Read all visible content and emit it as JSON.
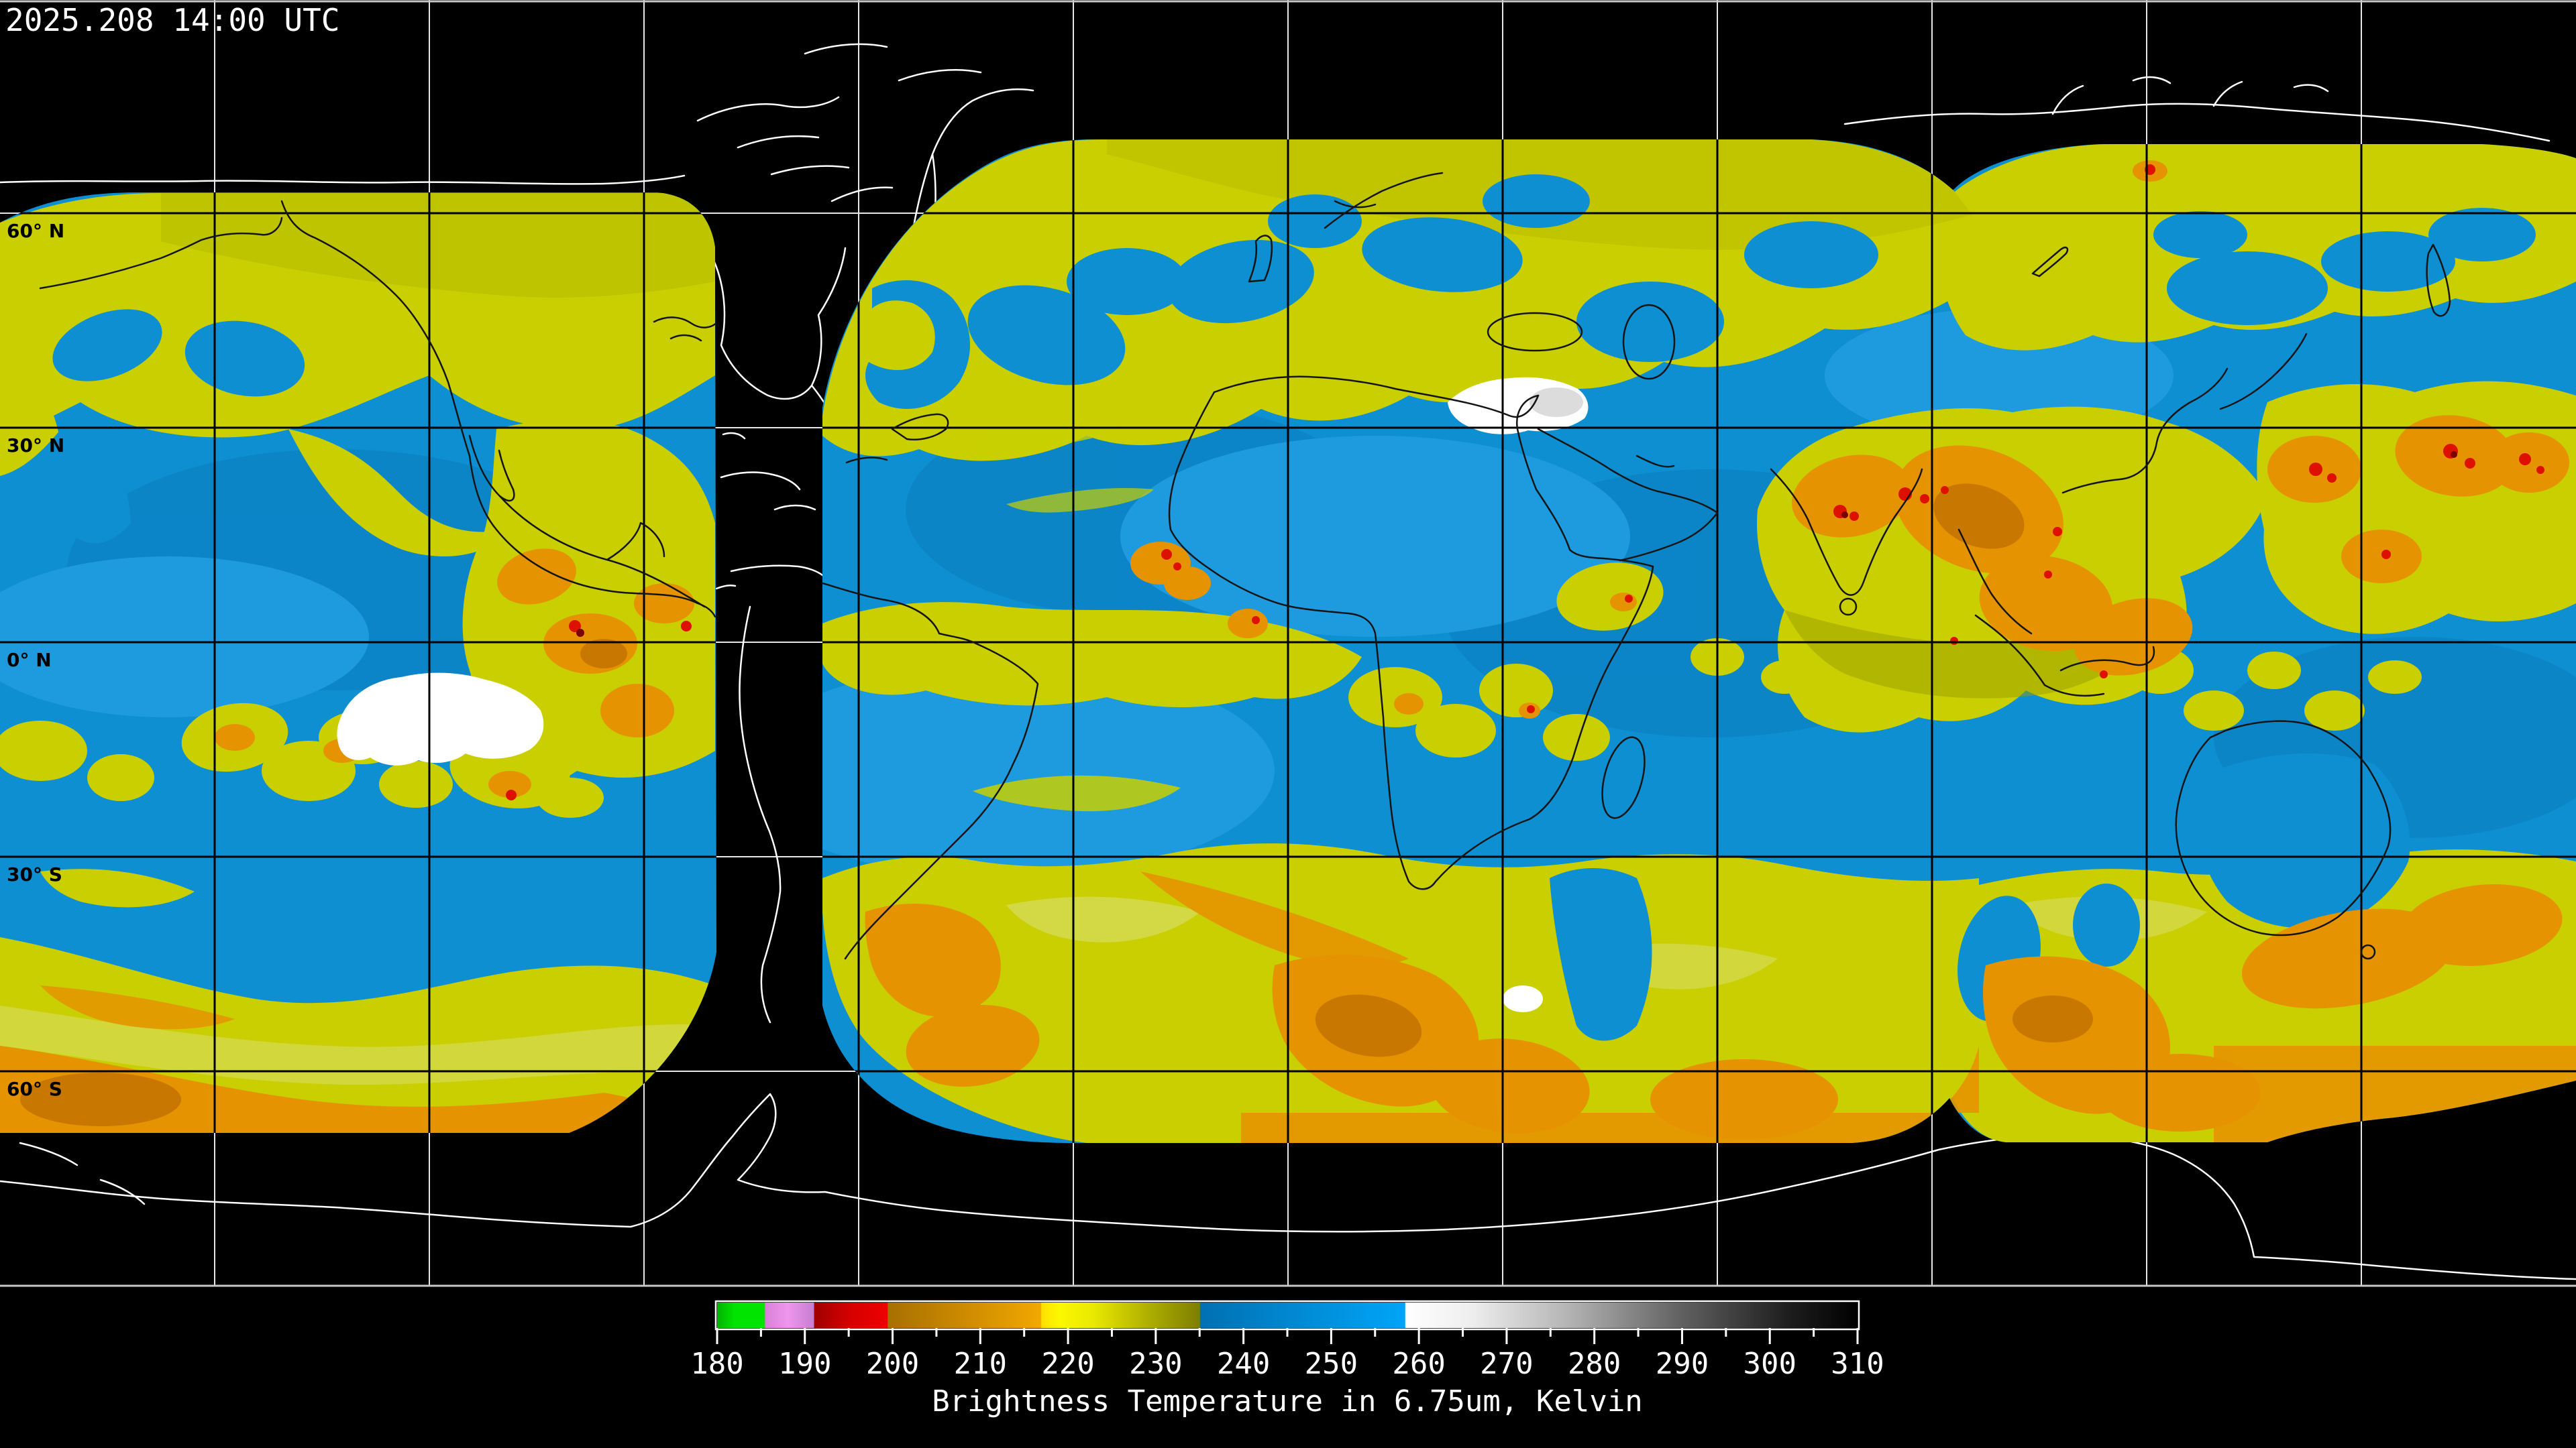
{
  "header": {
    "timestamp": "2025.208 14:00 UTC"
  },
  "map": {
    "latitude_labels": [
      "60° N",
      "30° N",
      "0° N",
      "30° S",
      "60° S"
    ],
    "grid": {
      "lat_step_deg": 30,
      "lon_step_deg": 30
    },
    "palette": {
      "no_data": "#000000",
      "ocean_blue": "#0d8fd2",
      "ocean_blue_dark": "#0b7fc0",
      "ocean_blue_light": "#2aa3e8",
      "cloud_yellow": "#c9cf00",
      "cloud_yellow_bright": "#e4ea00",
      "cloud_yellow_pale": "#d6db55",
      "cloud_olive": "#9aa000",
      "cloud_orange": "#e59300",
      "cloud_orange_deep": "#c87800",
      "cloud_red": "#de1000",
      "cloud_maroon": "#7a0000",
      "cloud_white": "#ffffff",
      "graticule_on_data": "#000000",
      "graticule_on_black": "#e8e8e8",
      "coastline_on_data": "#141414",
      "coastline_on_black": "#ffffff"
    }
  },
  "colorbar": {
    "caption": "Brightness Temperature in 6.75um, Kelvin",
    "unit": "Kelvin",
    "min": 180,
    "max": 310,
    "major_ticks": [
      180,
      190,
      200,
      210,
      220,
      230,
      240,
      250,
      260,
      270,
      280,
      290,
      300,
      310
    ],
    "minor_tick_step": 5,
    "stops": [
      [
        180,
        "#00b400"
      ],
      [
        182,
        "#00e400"
      ],
      [
        185.4,
        "#00e400"
      ],
      [
        185.5,
        "#d87fd8"
      ],
      [
        188,
        "#ee96ee"
      ],
      [
        191,
        "#c87fd0"
      ],
      [
        191.1,
        "#a00000"
      ],
      [
        195,
        "#d40000"
      ],
      [
        199.4,
        "#ee0000"
      ],
      [
        199.5,
        "#a87000"
      ],
      [
        208,
        "#cc8a00"
      ],
      [
        216.9,
        "#f2a800"
      ],
      [
        217,
        "#ffe000"
      ],
      [
        219,
        "#fcf800"
      ],
      [
        223,
        "#e8e800"
      ],
      [
        229,
        "#b0b000"
      ],
      [
        235,
        "#7e7e00"
      ],
      [
        235.1,
        "#0070b2"
      ],
      [
        248,
        "#008ed8"
      ],
      [
        258.4,
        "#00a4f8"
      ],
      [
        258.5,
        "#ffffff"
      ],
      [
        266,
        "#eeeeee"
      ],
      [
        277,
        "#b4b4b4"
      ],
      [
        290,
        "#606060"
      ],
      [
        302,
        "#1e1e1e"
      ],
      [
        310,
        "#000000"
      ]
    ]
  }
}
